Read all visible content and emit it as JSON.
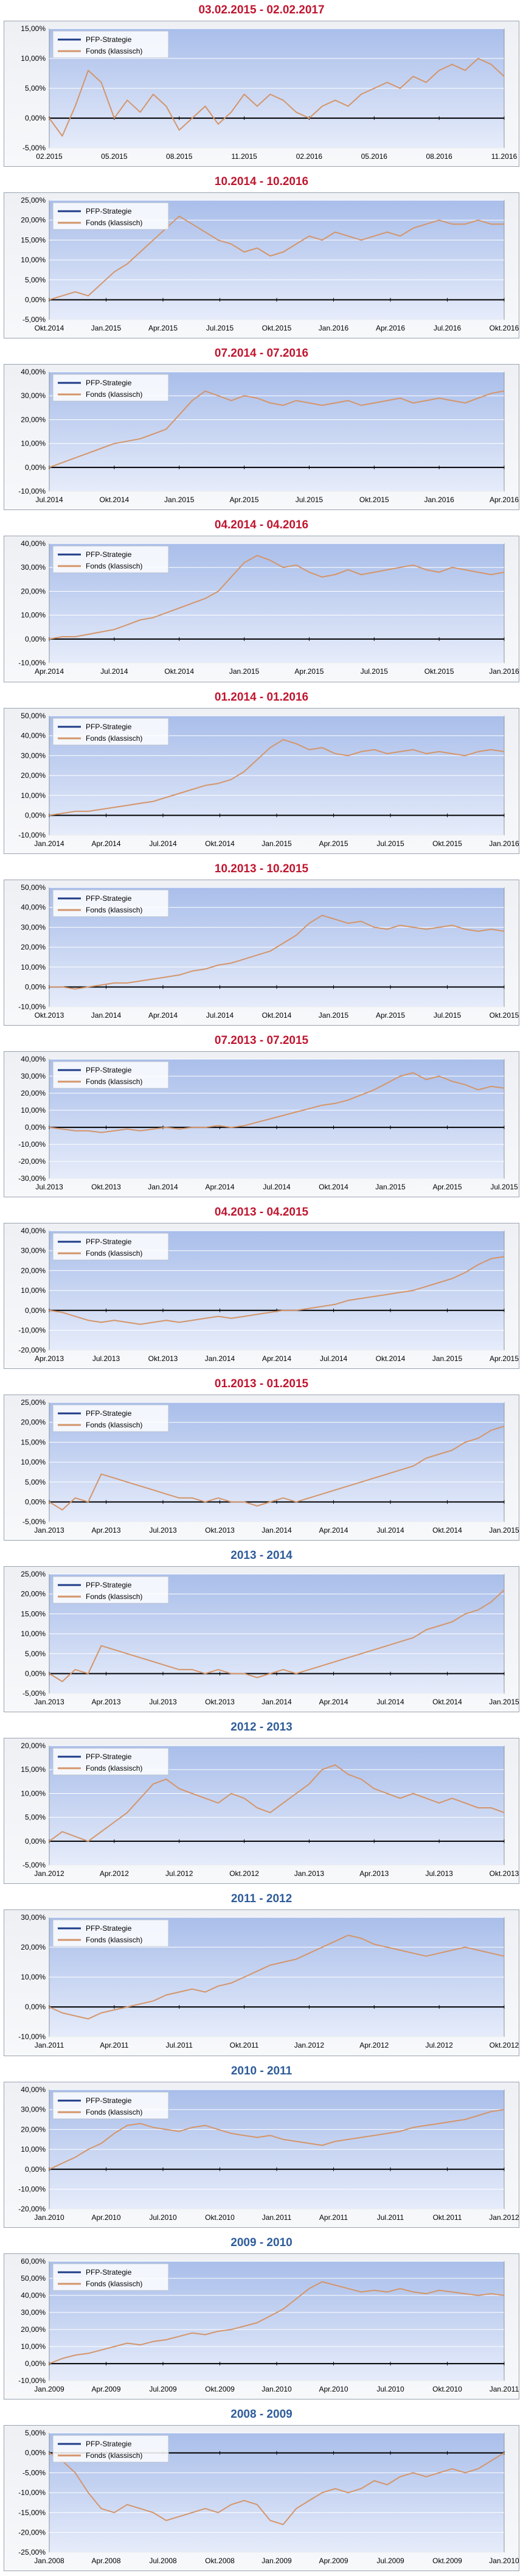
{
  "colors": {
    "title_red": "#C0152F",
    "title_blue": "#2E5C9A",
    "plot_top": "#A9BEEA",
    "plot_bottom": "#E6ECFA",
    "series_strategy": "#1F3C88",
    "series_fund": "#D4956A",
    "axis": "#000000",
    "grid": "#FFFFFF"
  },
  "legend_labels": [
    "PFP-Strategie",
    "Fonds (klassisch)"
  ],
  "chart_data": [
    {
      "type": "line",
      "title": "03.02.2015 - 02.02.2017",
      "title_color": "red",
      "y_ticks": [
        "15,00%",
        "10,00%",
        "5,00%",
        "0,00%",
        "-5,00%"
      ],
      "x_ticks": [
        "02.2015",
        "05.2015",
        "08.2015",
        "11.2015",
        "02.2016",
        "05.2016",
        "08.2016",
        "11.2016"
      ],
      "ylim": [
        -5,
        15
      ],
      "series": [
        {
          "name": "PFP-Strategie",
          "values": []
        },
        {
          "name": "Fonds (klassisch)",
          "values": [
            0,
            -3,
            2,
            8,
            6,
            0,
            3,
            1,
            4,
            2,
            -2,
            0,
            2,
            -1,
            1,
            4,
            2,
            4,
            3,
            1,
            0,
            2,
            3,
            2,
            4,
            5,
            6,
            5,
            7,
            6,
            8,
            9,
            8,
            10,
            9,
            7
          ]
        }
      ]
    },
    {
      "type": "line",
      "title": "10.2014 - 10.2016",
      "title_color": "red",
      "y_ticks": [
        "25,00%",
        "20,00%",
        "15,00%",
        "10,00%",
        "5,00%",
        "0,00%",
        "-5,00%"
      ],
      "x_ticks": [
        "Okt.2014",
        "Jan.2015",
        "Apr.2015",
        "Jul.2015",
        "Okt.2015",
        "Jan.2016",
        "Apr.2016",
        "Jul.2016",
        "Okt.2016"
      ],
      "ylim": [
        -5,
        25
      ],
      "series": [
        {
          "name": "PFP-Strategie",
          "values": []
        },
        {
          "name": "Fonds (klassisch)",
          "values": [
            0,
            1,
            2,
            1,
            4,
            7,
            9,
            12,
            15,
            18,
            21,
            19,
            17,
            15,
            14,
            12,
            13,
            11,
            12,
            14,
            16,
            15,
            17,
            16,
            15,
            16,
            17,
            16,
            18,
            19,
            20,
            19,
            19,
            20,
            19,
            19
          ]
        }
      ]
    },
    {
      "type": "line",
      "title": "07.2014 - 07.2016",
      "title_color": "red",
      "y_ticks": [
        "40,00%",
        "30,00%",
        "20,00%",
        "10,00%",
        "0,00%",
        "-10,00%"
      ],
      "x_ticks": [
        "Jul.2014",
        "Okt.2014",
        "Jan.2015",
        "Apr.2015",
        "Jul.2015",
        "Okt.2015",
        "Jan.2016",
        "Apr.2016"
      ],
      "ylim": [
        -10,
        40
      ],
      "series": [
        {
          "name": "PFP-Strategie",
          "values": []
        },
        {
          "name": "Fonds (klassisch)",
          "values": [
            0,
            2,
            4,
            6,
            8,
            10,
            11,
            12,
            14,
            16,
            22,
            28,
            32,
            30,
            28,
            30,
            29,
            27,
            26,
            28,
            27,
            26,
            27,
            28,
            26,
            27,
            28,
            29,
            27,
            28,
            29,
            28,
            27,
            29,
            31,
            32
          ]
        }
      ]
    },
    {
      "type": "line",
      "title": "04.2014 - 04.2016",
      "title_color": "red",
      "y_ticks": [
        "40,00%",
        "30,00%",
        "20,00%",
        "10,00%",
        "0,00%",
        "-10,00%"
      ],
      "x_ticks": [
        "Apr.2014",
        "Jul.2014",
        "Okt.2014",
        "Jan.2015",
        "Apr.2015",
        "Jul.2015",
        "Okt.2015",
        "Jan.2016"
      ],
      "ylim": [
        -10,
        40
      ],
      "series": [
        {
          "name": "PFP-Strategie",
          "values": []
        },
        {
          "name": "Fonds (klassisch)",
          "values": [
            0,
            1,
            1,
            2,
            3,
            4,
            6,
            8,
            9,
            11,
            13,
            15,
            17,
            20,
            26,
            32,
            35,
            33,
            30,
            31,
            28,
            26,
            27,
            29,
            27,
            28,
            29,
            30,
            31,
            29,
            28,
            30,
            29,
            28,
            27,
            28
          ]
        }
      ]
    },
    {
      "type": "line",
      "title": "01.2014 - 01.2016",
      "title_color": "red",
      "y_ticks": [
        "50,00%",
        "40,00%",
        "30,00%",
        "20,00%",
        "10,00%",
        "0,00%",
        "-10,00%"
      ],
      "x_ticks": [
        "Jan.2014",
        "Apr.2014",
        "Jul.2014",
        "Okt.2014",
        "Jan.2015",
        "Apr.2015",
        "Jul.2015",
        "Okt.2015",
        "Jan.2016"
      ],
      "ylim": [
        -10,
        50
      ],
      "series": [
        {
          "name": "PFP-Strategie",
          "values": []
        },
        {
          "name": "Fonds (klassisch)",
          "values": [
            0,
            1,
            2,
            2,
            3,
            4,
            5,
            6,
            7,
            9,
            11,
            13,
            15,
            16,
            18,
            22,
            28,
            34,
            38,
            36,
            33,
            34,
            31,
            30,
            32,
            33,
            31,
            32,
            33,
            31,
            32,
            31,
            30,
            32,
            33,
            32
          ]
        }
      ]
    },
    {
      "type": "line",
      "title": "10.2013 - 10.2015",
      "title_color": "red",
      "y_ticks": [
        "50,00%",
        "40,00%",
        "30,00%",
        "20,00%",
        "10,00%",
        "0,00%",
        "-10,00%"
      ],
      "x_ticks": [
        "Okt.2013",
        "Jan.2014",
        "Apr.2014",
        "Jul.2014",
        "Okt.2014",
        "Jan.2015",
        "Apr.2015",
        "Jul.2015",
        "Okt.2015"
      ],
      "ylim": [
        -10,
        50
      ],
      "series": [
        {
          "name": "PFP-Strategie",
          "values": []
        },
        {
          "name": "Fonds (klassisch)",
          "values": [
            0,
            0,
            -1,
            0,
            1,
            2,
            2,
            3,
            4,
            5,
            6,
            8,
            9,
            11,
            12,
            14,
            16,
            18,
            22,
            26,
            32,
            36,
            34,
            32,
            33,
            30,
            29,
            31,
            30,
            29,
            30,
            31,
            29,
            28,
            29,
            28
          ]
        }
      ]
    },
    {
      "type": "line",
      "title": "07.2013 - 07.2015",
      "title_color": "red",
      "y_ticks": [
        "40,00%",
        "30,00%",
        "20,00%",
        "10,00%",
        "0,00%",
        "-10,00%",
        "-20,00%",
        "-30,00%"
      ],
      "x_ticks": [
        "Jul.2013",
        "Okt.2013",
        "Jan.2014",
        "Apr.2014",
        "Jul.2014",
        "Okt.2014",
        "Jan.2015",
        "Apr.2015",
        "Jul.2015"
      ],
      "ylim": [
        -30,
        40
      ],
      "series": [
        {
          "name": "PFP-Strategie",
          "values": []
        },
        {
          "name": "Fonds (klassisch)",
          "values": [
            0,
            -1,
            -2,
            -2,
            -3,
            -2,
            -1,
            -2,
            -1,
            0,
            -1,
            0,
            0,
            1,
            0,
            1,
            3,
            5,
            7,
            9,
            11,
            13,
            14,
            16,
            19,
            22,
            26,
            30,
            32,
            28,
            30,
            27,
            25,
            22,
            24,
            23
          ]
        }
      ]
    },
    {
      "type": "line",
      "title": "04.2013 - 04.2015",
      "title_color": "red",
      "y_ticks": [
        "40,00%",
        "30,00%",
        "20,00%",
        "10,00%",
        "0,00%",
        "-10,00%",
        "-20,00%"
      ],
      "x_ticks": [
        "Apr.2013",
        "Jul.2013",
        "Okt.2013",
        "Jan.2014",
        "Apr.2014",
        "Jul.2014",
        "Okt.2014",
        "Jan.2015",
        "Apr.2015"
      ],
      "ylim": [
        -20,
        40
      ],
      "series": [
        {
          "name": "PFP-Strategie",
          "values": []
        },
        {
          "name": "Fonds (klassisch)",
          "values": [
            0,
            -1,
            -3,
            -5,
            -6,
            -5,
            -6,
            -7,
            -6,
            -5,
            -6,
            -5,
            -4,
            -3,
            -4,
            -3,
            -2,
            -1,
            0,
            0,
            1,
            2,
            3,
            5,
            6,
            7,
            8,
            9,
            10,
            12,
            14,
            16,
            19,
            23,
            26,
            27
          ]
        }
      ]
    },
    {
      "type": "line",
      "title": "01.2013 - 01.2015",
      "title_color": "red",
      "y_ticks": [
        "25,00%",
        "20,00%",
        "15,00%",
        "10,00%",
        "5,00%",
        "0,00%",
        "-5,00%"
      ],
      "x_ticks": [
        "Jan.2013",
        "Apr.2013",
        "Jul.2013",
        "Okt.2013",
        "Jan.2014",
        "Apr.2014",
        "Jul.2014",
        "Okt.2014",
        "Jan.2015"
      ],
      "ylim": [
        -5,
        25
      ],
      "series": [
        {
          "name": "PFP-Strategie",
          "values": []
        },
        {
          "name": "Fonds (klassisch)",
          "values": [
            0,
            -2,
            1,
            0,
            7,
            6,
            5,
            4,
            3,
            2,
            1,
            1,
            0,
            1,
            0,
            0,
            -1,
            0,
            1,
            0,
            1,
            2,
            3,
            4,
            5,
            6,
            7,
            8,
            9,
            11,
            12,
            13,
            15,
            16,
            18,
            19
          ]
        }
      ]
    },
    {
      "type": "line",
      "title": "2013 - 2014",
      "title_color": "blue",
      "y_ticks": [
        "25,00%",
        "20,00%",
        "15,00%",
        "10,00%",
        "5,00%",
        "0,00%",
        "-5,00%"
      ],
      "x_ticks": [
        "Jan.2013",
        "Apr.2013",
        "Jul.2013",
        "Okt.2013",
        "Jan.2014",
        "Apr.2014",
        "Jul.2014",
        "Okt.2014",
        "Jan.2015"
      ],
      "ylim": [
        -5,
        25
      ],
      "series": [
        {
          "name": "PFP-Strategie",
          "values": []
        },
        {
          "name": "Fonds (klassisch)",
          "values": [
            0,
            -2,
            1,
            0,
            7,
            6,
            5,
            4,
            3,
            2,
            1,
            1,
            0,
            1,
            0,
            0,
            -1,
            0,
            1,
            0,
            1,
            2,
            3,
            4,
            5,
            6,
            7,
            8,
            9,
            11,
            12,
            13,
            15,
            16,
            18,
            21
          ]
        }
      ]
    },
    {
      "type": "line",
      "title": "2012 - 2013",
      "title_color": "blue",
      "y_ticks": [
        "20,00%",
        "15,00%",
        "10,00%",
        "5,00%",
        "0,00%",
        "-5,00%"
      ],
      "x_ticks": [
        "Jan.2012",
        "Apr.2012",
        "Jul.2012",
        "Okt.2012",
        "Jan.2013",
        "Apr.2013",
        "Jul.2013",
        "Okt.2013"
      ],
      "ylim": [
        -5,
        20
      ],
      "series": [
        {
          "name": "PFP-Strategie",
          "values": []
        },
        {
          "name": "Fonds (klassisch)",
          "values": [
            0,
            2,
            1,
            0,
            2,
            4,
            6,
            9,
            12,
            13,
            11,
            10,
            9,
            8,
            10,
            9,
            7,
            6,
            8,
            10,
            12,
            15,
            16,
            14,
            13,
            11,
            10,
            9,
            10,
            9,
            8,
            9,
            8,
            7,
            7,
            6
          ]
        }
      ]
    },
    {
      "type": "line",
      "title": "2011 - 2012",
      "title_color": "blue",
      "y_ticks": [
        "30,00%",
        "20,00%",
        "10,00%",
        "0,00%",
        "-10,00%"
      ],
      "x_ticks": [
        "Jan.2011",
        "Apr.2011",
        "Jul.2011",
        "Okt.2011",
        "Jan.2012",
        "Apr.2012",
        "Jul.2012",
        "Okt.2012"
      ],
      "ylim": [
        -10,
        30
      ],
      "series": [
        {
          "name": "PFP-Strategie",
          "values": []
        },
        {
          "name": "Fonds (klassisch)",
          "values": [
            0,
            -2,
            -3,
            -4,
            -2,
            -1,
            0,
            1,
            2,
            4,
            5,
            6,
            5,
            7,
            8,
            10,
            12,
            14,
            15,
            16,
            18,
            20,
            22,
            24,
            23,
            21,
            20,
            19,
            18,
            17,
            18,
            19,
            20,
            19,
            18,
            17
          ]
        }
      ]
    },
    {
      "type": "line",
      "title": "2010 - 2011",
      "title_color": "blue",
      "y_ticks": [
        "40,00%",
        "30,00%",
        "20,00%",
        "10,00%",
        "0,00%",
        "-10,00%",
        "-20,00%"
      ],
      "x_ticks": [
        "Jan.2010",
        "Apr.2010",
        "Jul.2010",
        "Okt.2010",
        "Jan.2011",
        "Apr.2011",
        "Jul.2011",
        "Okt.2011",
        "Jan.2012"
      ],
      "ylim": [
        -20,
        40
      ],
      "series": [
        {
          "name": "PFP-Strategie",
          "values": []
        },
        {
          "name": "Fonds (klassisch)",
          "values": [
            0,
            3,
            6,
            10,
            13,
            18,
            22,
            23,
            21,
            20,
            19,
            21,
            22,
            20,
            18,
            17,
            16,
            17,
            15,
            14,
            13,
            12,
            14,
            15,
            16,
            17,
            18,
            19,
            21,
            22,
            23,
            24,
            25,
            27,
            29,
            30
          ]
        }
      ]
    },
    {
      "type": "line",
      "title": "2009 - 2010",
      "title_color": "blue",
      "y_ticks": [
        "60,00%",
        "50,00%",
        "40,00%",
        "30,00%",
        "20,00%",
        "10,00%",
        "0,00%",
        "-10,00%"
      ],
      "x_ticks": [
        "Jan.2009",
        "Apr.2009",
        "Jul.2009",
        "Okt.2009",
        "Jan.2010",
        "Apr.2010",
        "Jul.2010",
        "Okt.2010",
        "Jan.2011"
      ],
      "ylim": [
        -10,
        60
      ],
      "series": [
        {
          "name": "PFP-Strategie",
          "values": []
        },
        {
          "name": "Fonds (klassisch)",
          "values": [
            0,
            3,
            5,
            6,
            8,
            10,
            12,
            11,
            13,
            14,
            16,
            18,
            17,
            19,
            20,
            22,
            24,
            28,
            32,
            38,
            44,
            48,
            46,
            44,
            42,
            43,
            42,
            44,
            42,
            41,
            43,
            42,
            41,
            40,
            41,
            40
          ]
        }
      ]
    },
    {
      "type": "line",
      "title": "2008 - 2009",
      "title_color": "blue",
      "y_ticks": [
        "5,00%",
        "0,00%",
        "-5,00%",
        "-10,00%",
        "-15,00%",
        "-20,00%",
        "-25,00%"
      ],
      "x_ticks": [
        "Jan.2008",
        "Apr.2008",
        "Jul.2008",
        "Okt.2008",
        "Jan.2009",
        "Apr.2009",
        "Jul.2009",
        "Okt.2009",
        "Jan.2010"
      ],
      "ylim": [
        -25,
        5
      ],
      "series": [
        {
          "name": "PFP-Strategie",
          "values": []
        },
        {
          "name": "Fonds (klassisch)",
          "values": [
            0,
            -2,
            -5,
            -10,
            -14,
            -15,
            -13,
            -14,
            -15,
            -17,
            -16,
            -15,
            -14,
            -15,
            -13,
            -12,
            -13,
            -17,
            -18,
            -14,
            -12,
            -10,
            -9,
            -10,
            -9,
            -7,
            -8,
            -6,
            -5,
            -6,
            -5,
            -4,
            -5,
            -4,
            -2,
            0
          ]
        }
      ]
    }
  ]
}
